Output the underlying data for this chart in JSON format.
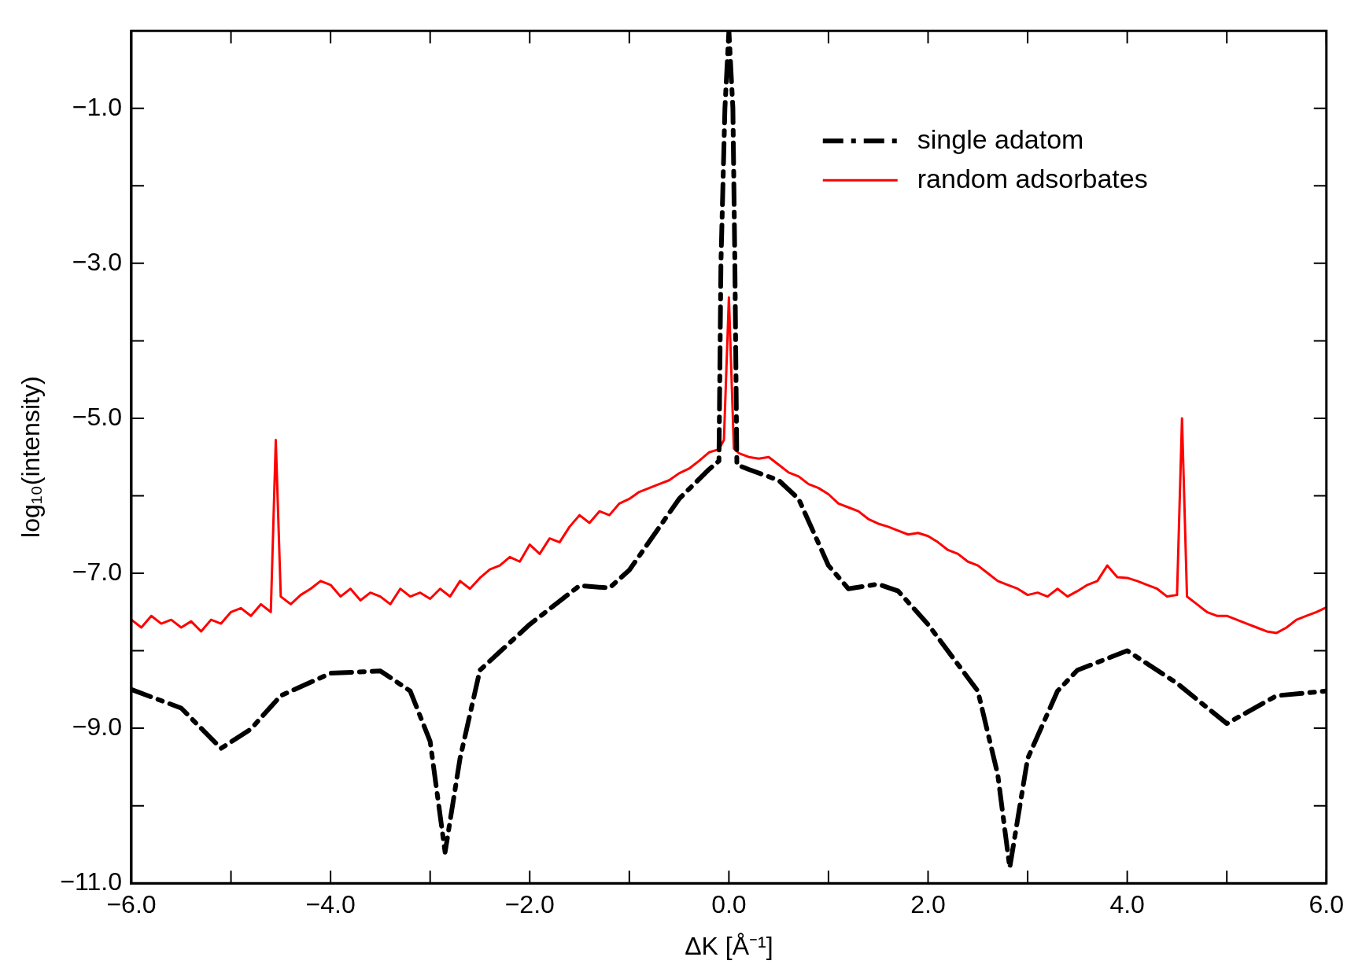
{
  "chart_data": {
    "type": "line",
    "xlabel": "ΔK [Å⁻¹]",
    "ylabel": "log₁₀(intensity)",
    "xlim": [
      -6,
      6
    ],
    "ylim": [
      -11,
      0
    ],
    "xticks": [
      {
        "value": -6,
        "label": "−6.0"
      },
      {
        "value": -5,
        "label": null
      },
      {
        "value": -4,
        "label": "−4.0"
      },
      {
        "value": -3,
        "label": null
      },
      {
        "value": -2,
        "label": "−2.0"
      },
      {
        "value": -1,
        "label": null
      },
      {
        "value": 0,
        "label": "0.0"
      },
      {
        "value": 1,
        "label": null
      },
      {
        "value": 2,
        "label": "2.0"
      },
      {
        "value": 3,
        "label": null
      },
      {
        "value": 4,
        "label": "4.0"
      },
      {
        "value": 5,
        "label": null
      },
      {
        "value": 6,
        "label": "6.0"
      }
    ],
    "yticks": [
      {
        "value": -11,
        "label": "−11.0"
      },
      {
        "value": -10,
        "label": null
      },
      {
        "value": -9,
        "label": "−9.0"
      },
      {
        "value": -8,
        "label": null
      },
      {
        "value": -7,
        "label": "−7.0"
      },
      {
        "value": -6,
        "label": null
      },
      {
        "value": -5,
        "label": "−5.0"
      },
      {
        "value": -4,
        "label": null
      },
      {
        "value": -3,
        "label": "−3.0"
      },
      {
        "value": -2,
        "label": null
      },
      {
        "value": -1,
        "label": "−1.0"
      }
    ],
    "grid": false,
    "legend": "top right",
    "marker": "none",
    "series": [
      {
        "name": "single adatom",
        "color": "#000000",
        "line_style": "dashed",
        "x": [
          -6,
          -5.5,
          -5.1,
          -4.8,
          -4.5,
          -4,
          -3.5,
          -3.2,
          -3,
          -2.85,
          -2.7,
          -2.5,
          -2,
          -1.5,
          -1.2,
          -1,
          -0.5,
          -0.2,
          -0.1,
          -0.08,
          -0.04,
          0,
          0.04,
          0.06,
          0.08,
          0.2,
          0.5,
          0.7,
          1,
          1.2,
          1.5,
          1.7,
          2,
          2.5,
          2.7,
          2.82,
          3,
          3.3,
          3.5,
          4,
          4.5,
          5,
          5.5,
          6
        ],
        "values": [
          -8.5,
          -8.74,
          -9.26,
          -9.01,
          -8.58,
          -8.29,
          -8.26,
          -8.52,
          -9.17,
          -10.6,
          -9.39,
          -8.25,
          -7.66,
          -7.16,
          -7.19,
          -6.96,
          -6.04,
          -5.66,
          -5.55,
          -3,
          -1,
          0,
          -1,
          -3,
          -5.6,
          -5.66,
          -5.8,
          -6.04,
          -6.9,
          -7.2,
          -7.14,
          -7.23,
          -7.66,
          -8.52,
          -9.6,
          -10.8,
          -9.39,
          -8.52,
          -8.25,
          -8,
          -8.42,
          -8.94,
          -8.58,
          -8.52
        ]
      },
      {
        "name": "random adsorbates",
        "color": "#ff0000",
        "line_style": "solid",
        "x": [
          -6,
          -5.9,
          -5.8,
          -5.7,
          -5.6,
          -5.5,
          -5.4,
          -5.3,
          -5.2,
          -5.1,
          -5,
          -4.9,
          -4.8,
          -4.7,
          -4.6,
          -4.55,
          -4.5,
          -4.4,
          -4.3,
          -4.2,
          -4.1,
          -4,
          -3.9,
          -3.8,
          -3.7,
          -3.6,
          -3.5,
          -3.4,
          -3.3,
          -3.2,
          -3.1,
          -3,
          -2.9,
          -2.8,
          -2.7,
          -2.6,
          -2.5,
          -2.4,
          -2.3,
          -2.2,
          -2.1,
          -2,
          -1.9,
          -1.8,
          -1.7,
          -1.6,
          -1.5,
          -1.4,
          -1.3,
          -1.2,
          -1.1,
          -1,
          -0.9,
          -0.8,
          -0.7,
          -0.6,
          -0.5,
          -0.4,
          -0.3,
          -0.2,
          -0.1,
          -0.05,
          0,
          0.05,
          0.1,
          0.2,
          0.3,
          0.4,
          0.5,
          0.6,
          0.7,
          0.8,
          0.9,
          1,
          1.1,
          1.2,
          1.3,
          1.4,
          1.5,
          1.6,
          1.7,
          1.8,
          1.9,
          2,
          2.1,
          2.2,
          2.3,
          2.4,
          2.5,
          2.6,
          2.7,
          2.8,
          2.9,
          3,
          3.1,
          3.2,
          3.3,
          3.4,
          3.5,
          3.6,
          3.7,
          3.8,
          3.9,
          4,
          4.1,
          4.2,
          4.3,
          4.4,
          4.5,
          4.55,
          4.6,
          4.7,
          4.8,
          4.9,
          5,
          5.1,
          5.2,
          5.3,
          5.4,
          5.5,
          5.6,
          5.7,
          5.8,
          5.9,
          6
        ],
        "values": [
          -7.6,
          -7.7,
          -7.55,
          -7.65,
          -7.6,
          -7.7,
          -7.62,
          -7.75,
          -7.6,
          -7.65,
          -7.5,
          -7.45,
          -7.55,
          -7.4,
          -7.5,
          -5.28,
          -7.3,
          -7.4,
          -7.28,
          -7.2,
          -7.1,
          -7.15,
          -7.3,
          -7.2,
          -7.35,
          -7.25,
          -7.3,
          -7.4,
          -7.2,
          -7.3,
          -7.25,
          -7.33,
          -7.2,
          -7.3,
          -7.1,
          -7.2,
          -7.06,
          -6.95,
          -6.9,
          -6.79,
          -6.85,
          -6.63,
          -6.75,
          -6.55,
          -6.6,
          -6.4,
          -6.25,
          -6.35,
          -6.2,
          -6.25,
          -6.1,
          -6.04,
          -5.95,
          -5.9,
          -5.85,
          -5.8,
          -5.71,
          -5.65,
          -5.55,
          -5.44,
          -5.4,
          -5.28,
          -3.44,
          -5.39,
          -5.45,
          -5.5,
          -5.52,
          -5.5,
          -5.6,
          -5.7,
          -5.75,
          -5.85,
          -5.9,
          -5.98,
          -6.1,
          -6.15,
          -6.2,
          -6.3,
          -6.36,
          -6.4,
          -6.45,
          -6.5,
          -6.48,
          -6.52,
          -6.6,
          -6.7,
          -6.75,
          -6.85,
          -6.9,
          -7.0,
          -7.1,
          -7.15,
          -7.2,
          -7.28,
          -7.25,
          -7.3,
          -7.2,
          -7.3,
          -7.23,
          -7.15,
          -7.1,
          -6.9,
          -7.05,
          -7.06,
          -7.1,
          -7.15,
          -7.2,
          -7.3,
          -7.28,
          -5.0,
          -7.3,
          -7.4,
          -7.5,
          -7.55,
          -7.55,
          -7.6,
          -7.65,
          -7.7,
          -7.75,
          -7.77,
          -7.7,
          -7.6,
          -7.55,
          -7.5,
          -7.44
        ]
      }
    ]
  }
}
